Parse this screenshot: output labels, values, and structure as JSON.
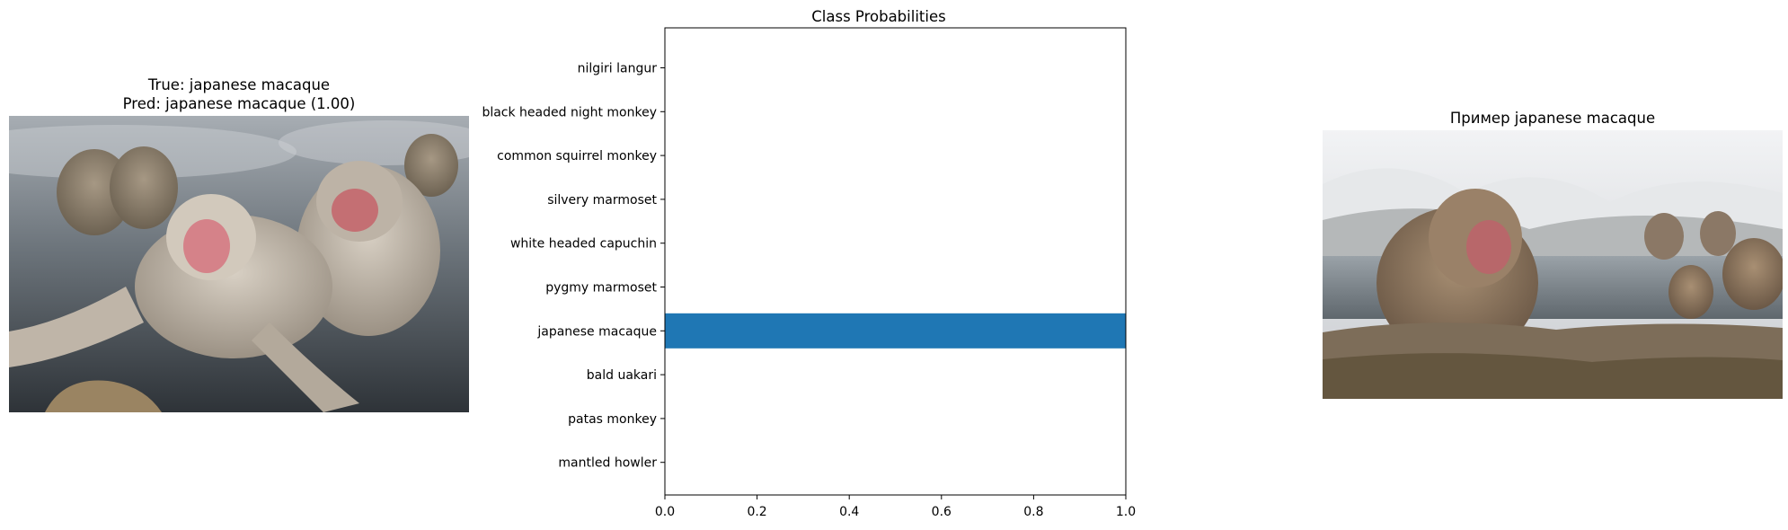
{
  "left_panel": {
    "title_line1": "True: japanese macaque",
    "title_line2": "Pred: japanese macaque (1.00)",
    "image_subject": "photo of japanese macaques grooming in a hot spring"
  },
  "right_panel": {
    "title": "Пример japanese macaque",
    "image_subject": "photo of japanese macaque in a snowy hot spring"
  },
  "chart_data": {
    "type": "bar",
    "orientation": "horizontal",
    "title": "Class Probabilities",
    "categories": [
      "nilgiri langur",
      "black headed night monkey",
      "common squirrel monkey",
      "silvery marmoset",
      "white headed capuchin",
      "pygmy marmoset",
      "japanese macaque",
      "bald uakari",
      "patas monkey",
      "mantled howler"
    ],
    "values": [
      0,
      0,
      0,
      0,
      0,
      0,
      1.0,
      0,
      0,
      0
    ],
    "xlim": [
      0,
      1.0
    ],
    "xticks": [
      "0.0",
      "0.2",
      "0.4",
      "0.6",
      "0.8",
      "1.0"
    ],
    "xlabel": "",
    "ylabel": "",
    "grid": false,
    "bar_color": "#1f77b4"
  }
}
